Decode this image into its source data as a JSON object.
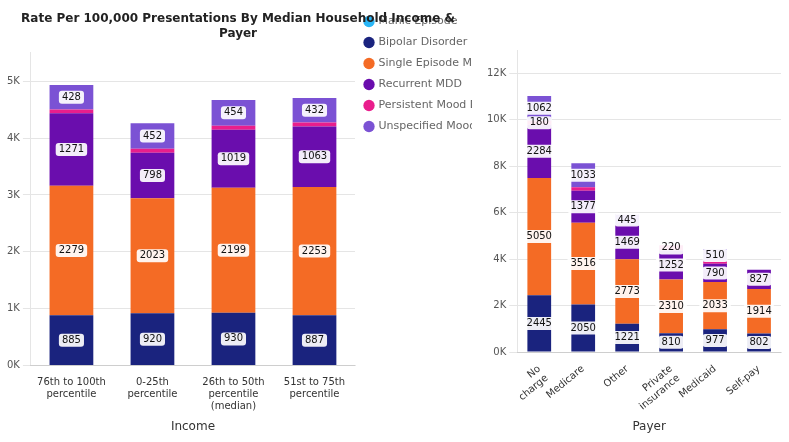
{
  "chart_data": [
    {
      "type": "bar",
      "title": "Rate Per 100,000 Presentations By Median Household Income &\nPayer",
      "xlabel": "Income",
      "categories": [
        "76th to 100th\npercentile",
        "0-25th\npercentile",
        "26th to 50th\npercentile\n(median)",
        "51st to 75th\npercentile"
      ],
      "series": [
        {
          "name": "Manic Episode",
          "color": "#29b6f6",
          "values": [
            null,
            null,
            null,
            null
          ]
        },
        {
          "name": "Bipolar Disorder",
          "color": "#1a237e",
          "values": [
            885,
            920,
            930,
            887
          ],
          "value_labels": [
            "885",
            "920",
            "930",
            "887"
          ]
        },
        {
          "name": "Single Episode MDD",
          "color": "#f46b25",
          "values": [
            2279,
            2023,
            2199,
            2253
          ],
          "value_labels": [
            "2279",
            "2023",
            "2199",
            "2253"
          ]
        },
        {
          "name": "Recurrent MDD",
          "color": "#6a0dad",
          "values": [
            1271,
            798,
            1019,
            1063
          ],
          "value_labels": [
            "1271",
            "798",
            "1019",
            "1063"
          ]
        },
        {
          "name": "Persistent Mood Disorder",
          "color": "#e91e8c",
          "values": [
            70,
            70,
            70,
            70
          ],
          "value_labels": [
            null,
            null,
            null,
            null
          ]
        },
        {
          "name": "Unspecified Mood Disorder",
          "color": "#7b52d4",
          "values": [
            428,
            452,
            454,
            432
          ],
          "value_labels": [
            "428",
            "452",
            "454",
            "432"
          ]
        }
      ],
      "stacked": true,
      "data_labels": true,
      "ylim": [
        0,
        5500
      ],
      "yticks": [
        {
          "value": 0,
          "label": "0K"
        },
        {
          "value": 1000,
          "label": "1K"
        },
        {
          "value": 2000,
          "label": "2K"
        },
        {
          "value": 3000,
          "label": "3K"
        },
        {
          "value": 4000,
          "label": "4K"
        },
        {
          "value": 5000,
          "label": "5K"
        }
      ],
      "grid": true,
      "legend": "right"
    },
    {
      "type": "bar",
      "xlabel": "Payer",
      "categories": [
        "No\ncharge",
        "Medicare",
        "Other",
        "Private\ninsurance",
        "Medicaid",
        "Self-pay"
      ],
      "series": [
        {
          "name": "Manic Episode",
          "color": "#29b6f6",
          "values": [
            null,
            null,
            null,
            null,
            null,
            null
          ]
        },
        {
          "name": "Bipolar Disorder",
          "color": "#1a237e",
          "values": [
            2445,
            2050,
            1221,
            810,
            977,
            802
          ],
          "value_labels": [
            "2445",
            "2050",
            "1221",
            "810",
            "977",
            "802"
          ]
        },
        {
          "name": "Single Episode MDD",
          "color": "#f46b25",
          "values": [
            5050,
            3516,
            2773,
            2310,
            2033,
            1914
          ],
          "value_labels": [
            "5050",
            "3516",
            "2773",
            "2310",
            "2033",
            "1914"
          ]
        },
        {
          "name": "Recurrent MDD",
          "color": "#6a0dad",
          "values": [
            2284,
            1377,
            1469,
            1252,
            790,
            827
          ],
          "value_labels": [
            "2284",
            "1377",
            "1469",
            "1252",
            "790",
            "827"
          ]
        },
        {
          "name": "Persistent Mood Disorder",
          "color": "#e91e8c",
          "values": [
            180,
            150,
            0,
            220,
            100,
            0
          ],
          "value_labels": [
            "180",
            null,
            null,
            "220",
            null,
            null
          ]
        },
        {
          "name": "Unspecified Mood Disorder",
          "color": "#7b52d4",
          "values": [
            1062,
            1033,
            445,
            0,
            510,
            0
          ],
          "value_labels": [
            "1062",
            "1033",
            "445",
            null,
            "510",
            null
          ]
        }
      ],
      "stacked": true,
      "data_labels": true,
      "ylim": [
        0,
        13000
      ],
      "yticks": [
        {
          "value": 0,
          "label": "0K"
        },
        {
          "value": 2000,
          "label": "2K"
        },
        {
          "value": 4000,
          "label": "4K"
        },
        {
          "value": 6000,
          "label": "6K"
        },
        {
          "value": 8000,
          "label": "8K"
        },
        {
          "value": 10000,
          "label": "10K"
        },
        {
          "value": 12000,
          "label": "12K"
        }
      ],
      "grid": true
    }
  ]
}
